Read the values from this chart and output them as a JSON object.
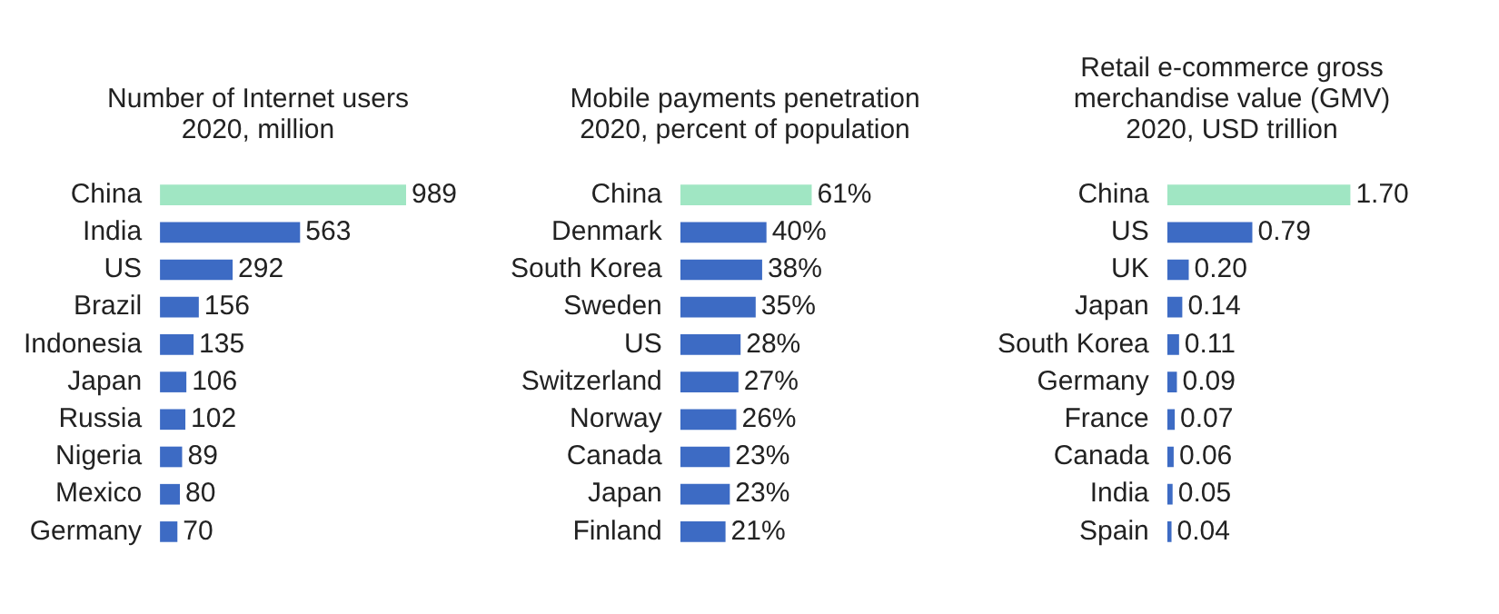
{
  "chart_data": [
    {
      "type": "bar",
      "orientation": "horizontal",
      "title": "Number of Internet users 2020, million",
      "categories": [
        "China",
        "India",
        "US",
        "Brazil",
        "Indonesia",
        "Japan",
        "Russia",
        "Nigeria",
        "Mexico",
        "Germany"
      ],
      "values": [
        989,
        563,
        292,
        156,
        135,
        106,
        102,
        89,
        80,
        70
      ],
      "colors": [
        "#a0e6c3",
        "#3d6bc4",
        "#3d6bc4",
        "#3d6bc4",
        "#3d6bc4",
        "#3d6bc4",
        "#3d6bc4",
        "#3d6bc4",
        "#3d6bc4",
        "#3d6bc4"
      ],
      "value_labels": [
        "989",
        "563",
        "292",
        "156",
        "135",
        "106",
        "102",
        "89",
        "80",
        "70"
      ],
      "tick_labels": "y"
    },
    {
      "type": "bar",
      "orientation": "horizontal",
      "title": "Mobile payments penetration 2020, percent of population",
      "categories": [
        "China",
        "Denmark",
        "South Korea",
        "Sweden",
        "US",
        "Switzerland",
        "Norway",
        "Canada",
        "Japan",
        "Finland"
      ],
      "values": [
        61,
        40,
        38,
        35,
        28,
        27,
        26,
        23,
        23,
        21
      ],
      "colors": [
        "#a0e6c3",
        "#3d6bc4",
        "#3d6bc4",
        "#3d6bc4",
        "#3d6bc4",
        "#3d6bc4",
        "#3d6bc4",
        "#3d6bc4",
        "#3d6bc4",
        "#3d6bc4"
      ],
      "value_labels": [
        "61%",
        "40%",
        "38%",
        "35%",
        "28%",
        "27%",
        "26%",
        "23%",
        "23%",
        "21%"
      ],
      "tick_labels": "y"
    },
    {
      "type": "bar",
      "orientation": "horizontal",
      "title": "Retail e-commerce gross merchandise value (GMV) 2020, USD trillion",
      "categories": [
        "China",
        "US",
        "UK",
        "Japan",
        "South Korea",
        "Germany",
        "France",
        "Canada",
        "India",
        "Spain"
      ],
      "values": [
        1.7,
        0.79,
        0.2,
        0.14,
        0.11,
        0.09,
        0.07,
        0.06,
        0.05,
        0.04
      ],
      "colors": [
        "#a0e6c3",
        "#3d6bc4",
        "#3d6bc4",
        "#3d6bc4",
        "#3d6bc4",
        "#3d6bc4",
        "#3d6bc4",
        "#3d6bc4",
        "#3d6bc4",
        "#3d6bc4"
      ],
      "value_labels": [
        "1.70",
        "0.79",
        "0.20",
        "0.14",
        "0.11",
        "0.09",
        "0.07",
        "0.06",
        "0.05",
        "0.04"
      ],
      "tick_labels": "y"
    }
  ]
}
